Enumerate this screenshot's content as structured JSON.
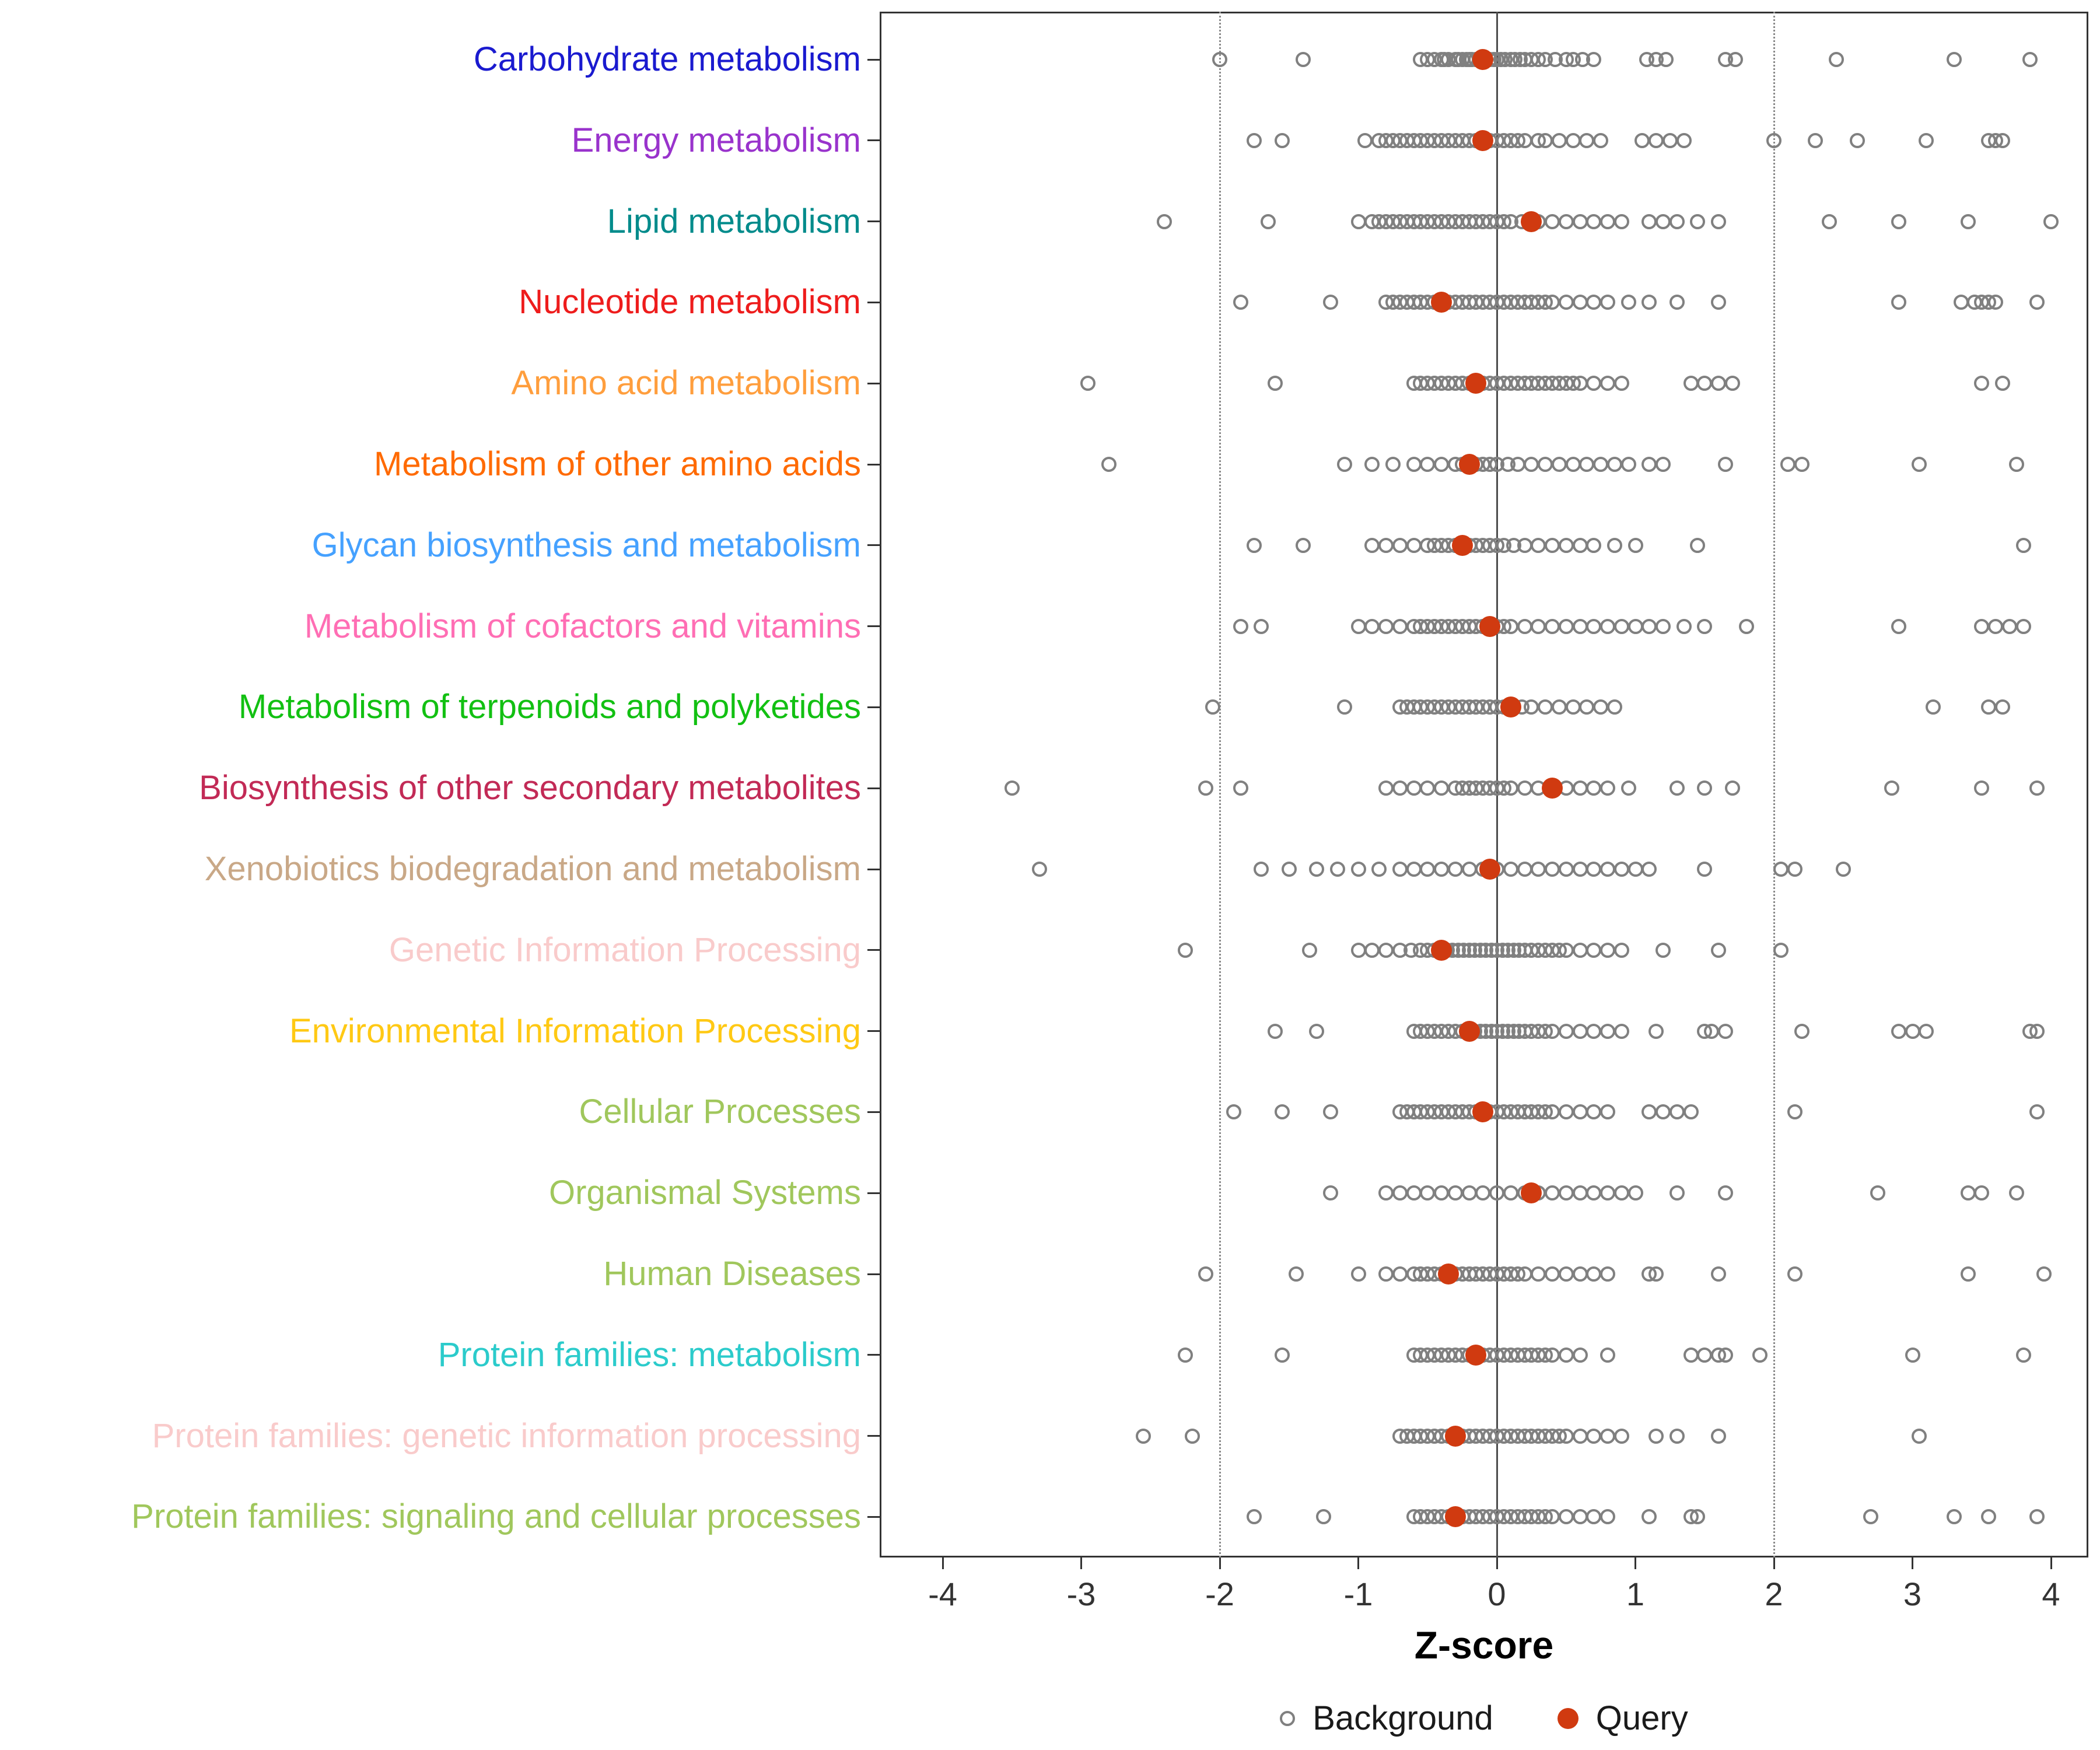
{
  "chart_data": {
    "type": "scatter",
    "title": "",
    "xlabel": "Z-score",
    "ylabel": "",
    "xlim": [
      -4.45,
      4.3
    ],
    "x_ticks": [
      -4,
      -3,
      -2,
      -1,
      0,
      1,
      2,
      3,
      4
    ],
    "grid": "off",
    "legend_position": "bottom",
    "reference_lines": {
      "solid": [
        0
      ],
      "dotted": [
        -2,
        2
      ]
    },
    "legend": [
      {
        "label": "Background",
        "marker": "open-gray-circle"
      },
      {
        "label": "Query",
        "marker": "filled-red-circle"
      }
    ],
    "colors": {
      "background_point": "#808080",
      "query_point": "#D03A10",
      "zero_line": "#4D4D4D",
      "dotted_line": "#8A8A8A",
      "panel_border": "#333333",
      "axis_text": "#333333",
      "axis_title": "#000000"
    },
    "categories": [
      {
        "label": "Carbohydrate metabolism",
        "color": "#1A1ACF",
        "query": -0.1,
        "background": [
          -2.0,
          -1.4,
          -0.55,
          -0.5,
          -0.45,
          -0.4,
          -0.38,
          -0.35,
          -0.3,
          -0.28,
          -0.25,
          -0.22,
          -0.2,
          -0.18,
          -0.15,
          -0.12,
          -0.1,
          -0.08,
          -0.05,
          -0.02,
          0.0,
          0.03,
          0.06,
          0.1,
          0.13,
          0.17,
          0.2,
          0.25,
          0.3,
          0.35,
          0.42,
          0.5,
          0.55,
          0.62,
          0.7,
          1.08,
          1.15,
          1.22,
          1.65,
          1.72,
          2.45,
          3.3,
          3.85
        ]
      },
      {
        "label": "Energy metabolism",
        "color": "#9933CC",
        "query": -0.1,
        "background": [
          -1.75,
          -1.55,
          -0.95,
          -0.85,
          -0.8,
          -0.75,
          -0.7,
          -0.65,
          -0.6,
          -0.55,
          -0.5,
          -0.45,
          -0.4,
          -0.35,
          -0.3,
          -0.25,
          -0.2,
          -0.15,
          -0.1,
          -0.05,
          0.0,
          0.05,
          0.1,
          0.15,
          0.2,
          0.3,
          0.35,
          0.45,
          0.55,
          0.65,
          0.75,
          1.05,
          1.15,
          1.25,
          1.35,
          2.0,
          2.3,
          2.6,
          3.1,
          3.55,
          3.6,
          3.65
        ]
      },
      {
        "label": "Lipid metabolism",
        "color": "#008B8B",
        "query": 0.25,
        "background": [
          -2.4,
          -1.65,
          -1.0,
          -0.9,
          -0.85,
          -0.8,
          -0.75,
          -0.7,
          -0.65,
          -0.6,
          -0.55,
          -0.5,
          -0.45,
          -0.4,
          -0.35,
          -0.3,
          -0.25,
          -0.2,
          -0.15,
          -0.1,
          -0.05,
          0.0,
          0.05,
          0.1,
          0.18,
          0.25,
          0.3,
          0.4,
          0.5,
          0.6,
          0.7,
          0.8,
          0.9,
          1.1,
          1.2,
          1.3,
          1.45,
          1.6,
          2.4,
          2.9,
          3.4,
          4.0
        ]
      },
      {
        "label": "Nucleotide metabolism",
        "color": "#EE1C1C",
        "query": -0.4,
        "background": [
          -1.85,
          -1.2,
          -0.8,
          -0.75,
          -0.7,
          -0.65,
          -0.6,
          -0.55,
          -0.5,
          -0.45,
          -0.4,
          -0.35,
          -0.3,
          -0.25,
          -0.2,
          -0.15,
          -0.1,
          -0.05,
          0.0,
          0.05,
          0.1,
          0.15,
          0.2,
          0.25,
          0.3,
          0.35,
          0.4,
          0.5,
          0.6,
          0.7,
          0.8,
          0.95,
          1.1,
          1.3,
          1.6,
          2.9,
          3.35,
          3.45,
          3.5,
          3.55,
          3.6,
          3.9
        ]
      },
      {
        "label": "Amino acid metabolism",
        "color": "#FF9E3D",
        "query": -0.15,
        "background": [
          -2.95,
          -1.6,
          -0.6,
          -0.55,
          -0.5,
          -0.45,
          -0.4,
          -0.35,
          -0.3,
          -0.25,
          -0.2,
          -0.15,
          -0.1,
          -0.05,
          0.0,
          0.05,
          0.1,
          0.15,
          0.2,
          0.25,
          0.3,
          0.35,
          0.4,
          0.45,
          0.5,
          0.55,
          0.6,
          0.7,
          0.8,
          0.9,
          1.4,
          1.5,
          1.6,
          1.7,
          3.5,
          3.65
        ]
      },
      {
        "label": "Metabolism of other amino acids",
        "color": "#FF6A00",
        "query": -0.2,
        "background": [
          -2.8,
          -1.1,
          -0.9,
          -0.75,
          -0.6,
          -0.5,
          -0.4,
          -0.3,
          -0.25,
          -0.2,
          -0.15,
          -0.1,
          -0.05,
          0.0,
          0.08,
          0.15,
          0.25,
          0.35,
          0.45,
          0.55,
          0.65,
          0.75,
          0.85,
          0.95,
          1.1,
          1.2,
          1.65,
          2.1,
          2.2,
          3.05,
          3.75
        ]
      },
      {
        "label": "Glycan biosynthesis and metabolism",
        "color": "#45A1FF",
        "query": -0.25,
        "background": [
          -1.75,
          -1.4,
          -0.9,
          -0.8,
          -0.7,
          -0.6,
          -0.5,
          -0.45,
          -0.4,
          -0.35,
          -0.3,
          -0.25,
          -0.2,
          -0.15,
          -0.1,
          -0.05,
          0.0,
          0.05,
          0.12,
          0.2,
          0.3,
          0.4,
          0.5,
          0.6,
          0.7,
          0.85,
          1.0,
          1.45,
          3.8
        ]
      },
      {
        "label": "Metabolism of cofactors and vitamins",
        "color": "#FF6EB4",
        "query": -0.05,
        "background": [
          -1.85,
          -1.7,
          -1.0,
          -0.9,
          -0.8,
          -0.7,
          -0.6,
          -0.55,
          -0.5,
          -0.45,
          -0.4,
          -0.35,
          -0.3,
          -0.25,
          -0.2,
          -0.15,
          -0.1,
          -0.05,
          0.0,
          0.05,
          0.1,
          0.2,
          0.3,
          0.4,
          0.5,
          0.6,
          0.7,
          0.8,
          0.9,
          1.0,
          1.1,
          1.2,
          1.35,
          1.5,
          1.8,
          2.9,
          3.5,
          3.6,
          3.7,
          3.8
        ]
      },
      {
        "label": "Metabolism of terpenoids and polyketides",
        "color": "#12C012",
        "query": 0.1,
        "background": [
          -2.05,
          -1.1,
          -0.7,
          -0.65,
          -0.6,
          -0.55,
          -0.5,
          -0.45,
          -0.4,
          -0.35,
          -0.3,
          -0.25,
          -0.2,
          -0.15,
          -0.1,
          -0.05,
          0.0,
          0.05,
          0.1,
          0.18,
          0.25,
          0.35,
          0.45,
          0.55,
          0.65,
          0.75,
          0.85,
          3.15,
          3.55,
          3.65
        ]
      },
      {
        "label": "Biosynthesis of other secondary metabolites",
        "color": "#C22A56",
        "query": 0.4,
        "background": [
          -3.5,
          -2.1,
          -1.85,
          -0.8,
          -0.7,
          -0.6,
          -0.5,
          -0.4,
          -0.3,
          -0.25,
          -0.2,
          -0.15,
          -0.1,
          -0.05,
          0.0,
          0.05,
          0.1,
          0.2,
          0.3,
          0.4,
          0.5,
          0.6,
          0.7,
          0.8,
          0.95,
          1.3,
          1.5,
          1.7,
          2.85,
          3.5,
          3.9
        ]
      },
      {
        "label": "Xenobiotics biodegradation and metabolism",
        "color": "#C9A887",
        "query": -0.05,
        "background": [
          -3.3,
          -1.7,
          -1.5,
          -1.3,
          -1.15,
          -1.0,
          -0.85,
          -0.7,
          -0.6,
          -0.5,
          -0.4,
          -0.3,
          -0.2,
          -0.1,
          -0.05,
          0.0,
          0.1,
          0.2,
          0.3,
          0.4,
          0.5,
          0.6,
          0.7,
          0.8,
          0.9,
          1.0,
          1.1,
          1.5,
          2.05,
          2.15,
          2.5
        ]
      },
      {
        "label": "Genetic Information Processing",
        "color": "#F9CBCB",
        "query": -0.4,
        "background": [
          -2.25,
          -1.35,
          -1.0,
          -0.9,
          -0.8,
          -0.7,
          -0.62,
          -0.55,
          -0.5,
          -0.45,
          -0.4,
          -0.36,
          -0.32,
          -0.28,
          -0.24,
          -0.2,
          -0.16,
          -0.12,
          -0.08,
          -0.04,
          0.0,
          0.04,
          0.08,
          0.12,
          0.16,
          0.2,
          0.25,
          0.3,
          0.35,
          0.4,
          0.45,
          0.5,
          0.6,
          0.7,
          0.8,
          0.9,
          1.2,
          1.6,
          2.05
        ]
      },
      {
        "label": "Environmental Information Processing",
        "color": "#FFC914",
        "query": -0.2,
        "background": [
          -1.6,
          -1.3,
          -0.6,
          -0.55,
          -0.5,
          -0.45,
          -0.4,
          -0.35,
          -0.3,
          -0.25,
          -0.2,
          -0.16,
          -0.12,
          -0.08,
          -0.04,
          0.0,
          0.04,
          0.08,
          0.12,
          0.16,
          0.2,
          0.25,
          0.3,
          0.35,
          0.4,
          0.5,
          0.6,
          0.7,
          0.8,
          0.9,
          1.15,
          1.5,
          1.55,
          1.65,
          2.2,
          2.9,
          3.0,
          3.1,
          3.85,
          3.9
        ]
      },
      {
        "label": "Cellular Processes",
        "color": "#A0C75C",
        "query": -0.1,
        "background": [
          -1.9,
          -1.55,
          -1.2,
          -0.7,
          -0.65,
          -0.6,
          -0.55,
          -0.5,
          -0.45,
          -0.4,
          -0.35,
          -0.3,
          -0.25,
          -0.2,
          -0.15,
          -0.1,
          -0.05,
          0.0,
          0.05,
          0.1,
          0.15,
          0.2,
          0.25,
          0.3,
          0.35,
          0.4,
          0.5,
          0.6,
          0.7,
          0.8,
          1.1,
          1.2,
          1.3,
          1.4,
          2.15,
          3.9
        ]
      },
      {
        "label": "Organismal Systems",
        "color": "#A0C75C",
        "query": 0.25,
        "background": [
          -1.2,
          -0.8,
          -0.7,
          -0.6,
          -0.5,
          -0.4,
          -0.3,
          -0.2,
          -0.1,
          0.0,
          0.1,
          0.2,
          0.3,
          0.4,
          0.5,
          0.6,
          0.7,
          0.8,
          0.9,
          1.0,
          1.3,
          1.65,
          2.75,
          3.4,
          3.5,
          3.75
        ]
      },
      {
        "label": "Human Diseases",
        "color": "#A0C75C",
        "query": -0.35,
        "background": [
          -2.1,
          -1.45,
          -1.0,
          -0.8,
          -0.7,
          -0.6,
          -0.55,
          -0.5,
          -0.45,
          -0.4,
          -0.35,
          -0.3,
          -0.25,
          -0.2,
          -0.15,
          -0.1,
          -0.05,
          0.0,
          0.05,
          0.1,
          0.15,
          0.2,
          0.3,
          0.4,
          0.5,
          0.6,
          0.7,
          0.8,
          1.1,
          1.15,
          1.6,
          2.15,
          3.4,
          3.95
        ]
      },
      {
        "label": "Protein families: metabolism",
        "color": "#2BCBCB",
        "query": -0.15,
        "background": [
          -2.25,
          -1.55,
          -0.6,
          -0.55,
          -0.5,
          -0.45,
          -0.4,
          -0.35,
          -0.3,
          -0.25,
          -0.2,
          -0.15,
          -0.1,
          -0.05,
          0.0,
          0.05,
          0.1,
          0.15,
          0.2,
          0.25,
          0.3,
          0.35,
          0.4,
          0.5,
          0.6,
          0.8,
          1.4,
          1.5,
          1.6,
          1.65,
          1.9,
          3.0,
          3.8
        ]
      },
      {
        "label": "Protein families: genetic information processing",
        "color": "#F9CBCB",
        "query": -0.3,
        "background": [
          -2.55,
          -2.2,
          -0.7,
          -0.65,
          -0.6,
          -0.55,
          -0.5,
          -0.45,
          -0.4,
          -0.35,
          -0.3,
          -0.25,
          -0.2,
          -0.15,
          -0.1,
          -0.05,
          0.0,
          0.05,
          0.1,
          0.15,
          0.2,
          0.25,
          0.3,
          0.35,
          0.4,
          0.45,
          0.5,
          0.6,
          0.7,
          0.8,
          0.9,
          1.15,
          1.3,
          1.6,
          3.05
        ]
      },
      {
        "label": "Protein families: signaling and cellular processes",
        "color": "#A0C75C",
        "query": -0.3,
        "background": [
          -1.75,
          -1.25,
          -0.6,
          -0.55,
          -0.5,
          -0.45,
          -0.4,
          -0.35,
          -0.3,
          -0.25,
          -0.2,
          -0.15,
          -0.1,
          -0.05,
          0.0,
          0.05,
          0.1,
          0.15,
          0.2,
          0.25,
          0.3,
          0.35,
          0.4,
          0.5,
          0.6,
          0.7,
          0.8,
          1.1,
          1.4,
          1.45,
          2.7,
          3.3,
          3.55,
          3.9
        ]
      }
    ]
  }
}
